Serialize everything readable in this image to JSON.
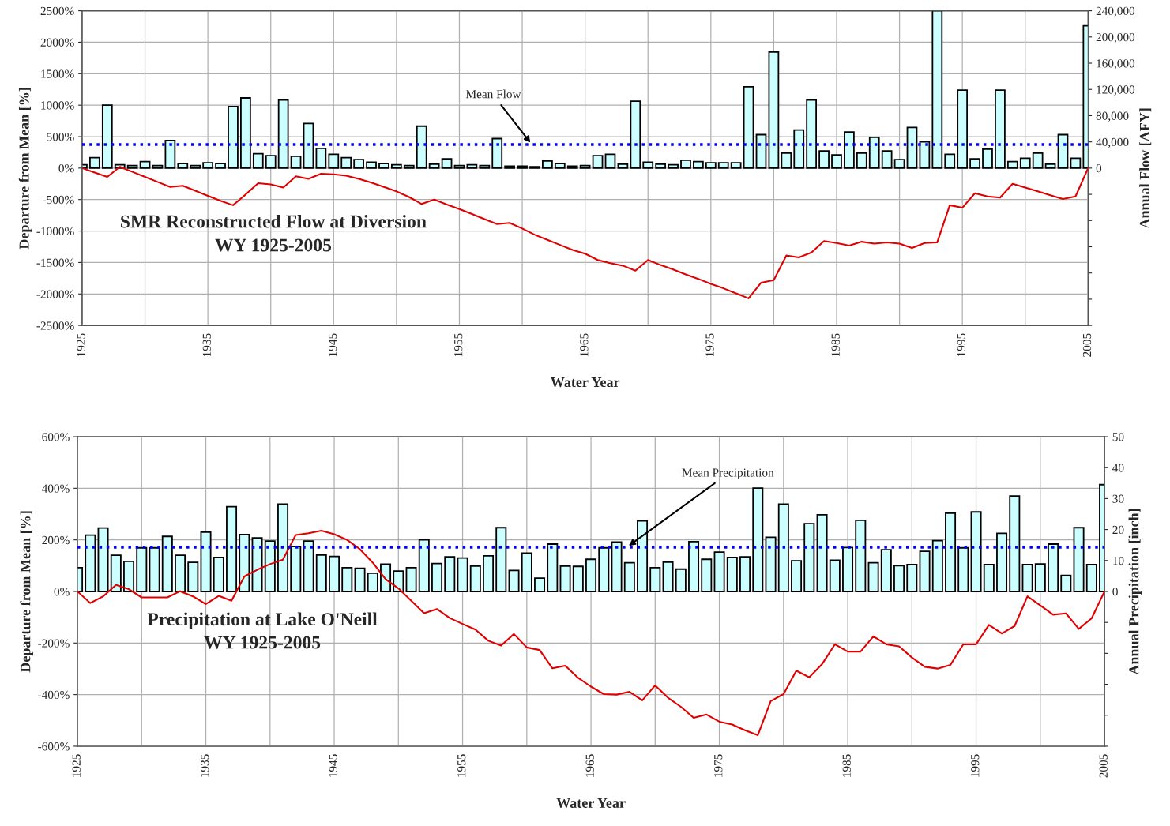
{
  "chart_data": [
    {
      "type": "bar",
      "title": "SMR Reconstructed Flow at Diversion",
      "subtitle": "WY 1925-2005",
      "xlabel": "Water Year",
      "ylabel": "Departure from Mean [%]",
      "y2label": "Annual Flow [AFY]",
      "x": [
        1925,
        1926,
        1927,
        1928,
        1929,
        1930,
        1931,
        1932,
        1933,
        1934,
        1935,
        1936,
        1937,
        1938,
        1939,
        1940,
        1941,
        1942,
        1943,
        1944,
        1945,
        1946,
        1947,
        1948,
        1949,
        1950,
        1951,
        1952,
        1953,
        1954,
        1955,
        1956,
        1957,
        1958,
        1959,
        1960,
        1961,
        1962,
        1963,
        1964,
        1965,
        1966,
        1967,
        1968,
        1969,
        1970,
        1971,
        1972,
        1973,
        1974,
        1975,
        1976,
        1977,
        1978,
        1979,
        1980,
        1981,
        1982,
        1983,
        1984,
        1985,
        1986,
        1987,
        1988,
        1989,
        1990,
        1991,
        1992,
        1993,
        1994,
        1995,
        1996,
        1997,
        1998,
        1999,
        2000,
        2001,
        2002,
        2003,
        2004,
        2005
      ],
      "series": [
        {
          "axis": "y2",
          "color": "#ccffff",
          "values": [
            5000,
            16000,
            96000,
            5000,
            4000,
            10000,
            4000,
            42000,
            7000,
            4000,
            8000,
            7000,
            94000,
            107000,
            22000,
            19000,
            104000,
            18000,
            68000,
            30000,
            21000,
            16000,
            13000,
            9000,
            7000,
            5000,
            4000,
            64000,
            6000,
            14000,
            4000,
            5000,
            4000,
            45000,
            3000,
            3000,
            2000,
            11000,
            7000,
            3000,
            4000,
            19000,
            21000,
            6000,
            102000,
            9000,
            6000,
            5000,
            12000,
            10000,
            8000,
            8000,
            8000,
            124000,
            51000,
            177000,
            23000,
            58000,
            104000,
            26000,
            20000,
            55000,
            23000,
            47000,
            26000,
            13000,
            62000,
            40000,
            240000,
            21000,
            119000,
            14000,
            29000,
            119000,
            10000,
            15000,
            23000,
            6000,
            51000,
            15000,
            217000
          ]
        },
        {
          "type": "line",
          "axis": "y",
          "color": "#e00000",
          "values": [
            0,
            -70,
            -140,
            20,
            -60,
            -140,
            -220,
            -300,
            -280,
            -360,
            -440,
            -520,
            -590,
            -420,
            -240,
            -260,
            -310,
            -130,
            -170,
            -90,
            -100,
            -120,
            -170,
            -230,
            -300,
            -370,
            -460,
            -570,
            -500,
            -580,
            -650,
            -730,
            -810,
            -890,
            -870,
            -960,
            -1060,
            -1140,
            -1220,
            -1300,
            -1360,
            -1460,
            -1510,
            -1550,
            -1630,
            -1460,
            -1540,
            -1610,
            -1690,
            -1760,
            -1840,
            -1910,
            -1990,
            -2070,
            -1820,
            -1780,
            -1390,
            -1420,
            -1340,
            -1160,
            -1190,
            -1230,
            -1170,
            -1200,
            -1180,
            -1200,
            -1270,
            -1190,
            -1180,
            -590,
            -630,
            -400,
            -450,
            -470,
            -250,
            -310,
            -370,
            -430,
            -490,
            -450,
            0
          ]
        }
      ],
      "xlim": [
        1925,
        2005
      ],
      "xticks": [
        1925,
        {
          "value": 1930,
          "label": null
        },
        1935,
        {
          "value": 1940,
          "label": null
        },
        1945,
        {
          "value": 1950,
          "label": null
        },
        1955,
        {
          "value": 1960,
          "label": null
        },
        1965,
        {
          "value": 1970,
          "label": null
        },
        1975,
        {
          "value": 1980,
          "label": null
        },
        1985,
        {
          "value": 1990,
          "label": null
        },
        1995,
        {
          "value": 2000,
          "label": null
        },
        2005
      ],
      "ylim": [
        -2500,
        2500
      ],
      "yticks": [
        {
          "value": -2500,
          "label": "-2500%"
        },
        {
          "value": -2000,
          "label": "-2000%"
        },
        {
          "value": -1500,
          "label": "-1500%"
        },
        {
          "value": -1000,
          "label": "-1000%"
        },
        {
          "value": -500,
          "label": "-500%"
        },
        {
          "value": 0,
          "label": "0%"
        },
        {
          "value": 500,
          "label": "500%"
        },
        {
          "value": 1000,
          "label": "1000%"
        },
        {
          "value": 1500,
          "label": "1500%"
        },
        {
          "value": 2000,
          "label": "2000%"
        },
        {
          "value": 2500,
          "label": "2500%"
        }
      ],
      "y2lim": [
        -240000,
        240000
      ],
      "y2ticks": [
        {
          "value": -240000,
          "label": null
        },
        {
          "value": -200000,
          "label": null
        },
        {
          "value": -160000,
          "label": null
        },
        {
          "value": -120000,
          "label": null
        },
        {
          "value": -80000,
          "label": null
        },
        {
          "value": -40000,
          "label": null
        },
        0,
        {
          "value": 40000,
          "label": "40,000"
        },
        {
          "value": 80000,
          "label": "80,000"
        },
        {
          "value": 120000,
          "label": "120,000"
        },
        {
          "value": 160000,
          "label": "160,000"
        },
        {
          "value": 200000,
          "label": "200,000"
        },
        {
          "value": 240000,
          "label": "240,000"
        }
      ],
      "ref_lines": [
        {
          "axis": "y2",
          "value": 36000,
          "label": "Mean Flow",
          "color": "#0000ff",
          "line_style": "dotted"
        }
      ],
      "grid": true
    },
    {
      "type": "bar",
      "title": "Precipitation at Lake O'Neill",
      "subtitle": "WY 1925-2005",
      "xlabel": "Water Year",
      "ylabel": "Departure from Mean [%]",
      "y2label": "Annual Precipitation [inch]",
      "x": [
        1925,
        1926,
        1927,
        1928,
        1929,
        1930,
        1931,
        1932,
        1933,
        1934,
        1935,
        1936,
        1937,
        1938,
        1939,
        1940,
        1941,
        1942,
        1943,
        1944,
        1945,
        1946,
        1947,
        1948,
        1949,
        1950,
        1951,
        1952,
        1953,
        1954,
        1955,
        1956,
        1957,
        1958,
        1959,
        1960,
        1961,
        1962,
        1963,
        1964,
        1965,
        1966,
        1967,
        1968,
        1969,
        1970,
        1971,
        1972,
        1973,
        1974,
        1975,
        1976,
        1977,
        1978,
        1979,
        1980,
        1981,
        1982,
        1983,
        1984,
        1985,
        1986,
        1987,
        1988,
        1989,
        1990,
        1991,
        1992,
        1993,
        1994,
        1995,
        1996,
        1997,
        1998,
        1999,
        2000,
        2001,
        2002,
        2003,
        2004,
        2005
      ],
      "series": [
        {
          "axis": "y2",
          "color": "#ccffff",
          "values": [
            7.7,
            18.2,
            20.5,
            11.7,
            9.7,
            14.1,
            14.1,
            17.8,
            11.7,
            9.4,
            19.2,
            11.0,
            27.4,
            18.4,
            17.3,
            16.3,
            28.2,
            14.5,
            16.3,
            11.8,
            11.3,
            7.7,
            7.5,
            5.9,
            8.8,
            6.6,
            7.7,
            16.7,
            9.0,
            11.2,
            10.8,
            8.2,
            11.5,
            20.6,
            6.8,
            12.4,
            4.3,
            15.3,
            8.2,
            8.1,
            10.4,
            14.1,
            16.0,
            9.3,
            22.8,
            7.7,
            9.5,
            7.2,
            16.1,
            10.4,
            12.7,
            11.0,
            11.2,
            33.4,
            17.5,
            28.2,
            9.9,
            21.9,
            24.8,
            10.1,
            14.2,
            23.0,
            9.3,
            13.5,
            8.3,
            8.7,
            13.0,
            16.4,
            25.3,
            14.1,
            25.7,
            8.7,
            18.8,
            30.8,
            8.7,
            8.9,
            15.3,
            5.2,
            20.6,
            8.7,
            34.5
          ]
        },
        {
          "type": "line",
          "axis": "y",
          "color": "#e00000",
          "values": [
            0,
            -45,
            -19,
            25,
            9,
            -23,
            -23,
            -23,
            1,
            -19,
            -49,
            -17,
            -36,
            58,
            84,
            106,
            123,
            219,
            226,
            236,
            222,
            200,
            164,
            112,
            48,
            12,
            -36,
            -84,
            -68,
            -103,
            -126,
            -148,
            -191,
            -210,
            -165,
            -217,
            -227,
            -298,
            -288,
            -335,
            -369,
            -398,
            -400,
            -389,
            -422,
            -364,
            -412,
            -447,
            -490,
            -477,
            -505,
            -516,
            -538,
            -557,
            -425,
            -398,
            -307,
            -333,
            -282,
            -205,
            -233,
            -233,
            -174,
            -205,
            -213,
            -256,
            -292,
            -299,
            -285,
            -205,
            -205,
            -130,
            -163,
            -134,
            -19,
            -54,
            -90,
            -85,
            -145,
            -104,
            0
          ]
        }
      ],
      "xlim": [
        1925,
        2005
      ],
      "xticks": [
        1925,
        {
          "value": 1930,
          "label": null
        },
        1935,
        {
          "value": 1940,
          "label": null
        },
        1945,
        {
          "value": 1950,
          "label": null
        },
        1955,
        {
          "value": 1960,
          "label": null
        },
        1965,
        {
          "value": 1970,
          "label": null
        },
        1975,
        {
          "value": 1980,
          "label": null
        },
        1985,
        {
          "value": 1990,
          "label": null
        },
        1995,
        {
          "value": 2000,
          "label": null
        },
        2005
      ],
      "ylim": [
        -600,
        600
      ],
      "yticks": [
        {
          "value": -600,
          "label": "-600%"
        },
        {
          "value": -400,
          "label": "-400%"
        },
        {
          "value": -200,
          "label": "-200%"
        },
        {
          "value": 0,
          "label": "0%"
        },
        {
          "value": 200,
          "label": "200%"
        },
        {
          "value": 400,
          "label": "400%"
        },
        {
          "value": 600,
          "label": "600%"
        }
      ],
      "y2lim": [
        -50,
        50
      ],
      "y2ticks": [
        {
          "value": -50,
          "label": null
        },
        {
          "value": -40,
          "label": null
        },
        {
          "value": -30,
          "label": null
        },
        {
          "value": -20,
          "label": null
        },
        {
          "value": -10,
          "label": null
        },
        0,
        10,
        20,
        30,
        40,
        50
      ],
      "ref_lines": [
        {
          "axis": "y2",
          "value": 14.3,
          "label": "Mean Precipitation",
          "color": "#0000ff",
          "line_style": "dotted"
        }
      ],
      "grid": true
    }
  ]
}
